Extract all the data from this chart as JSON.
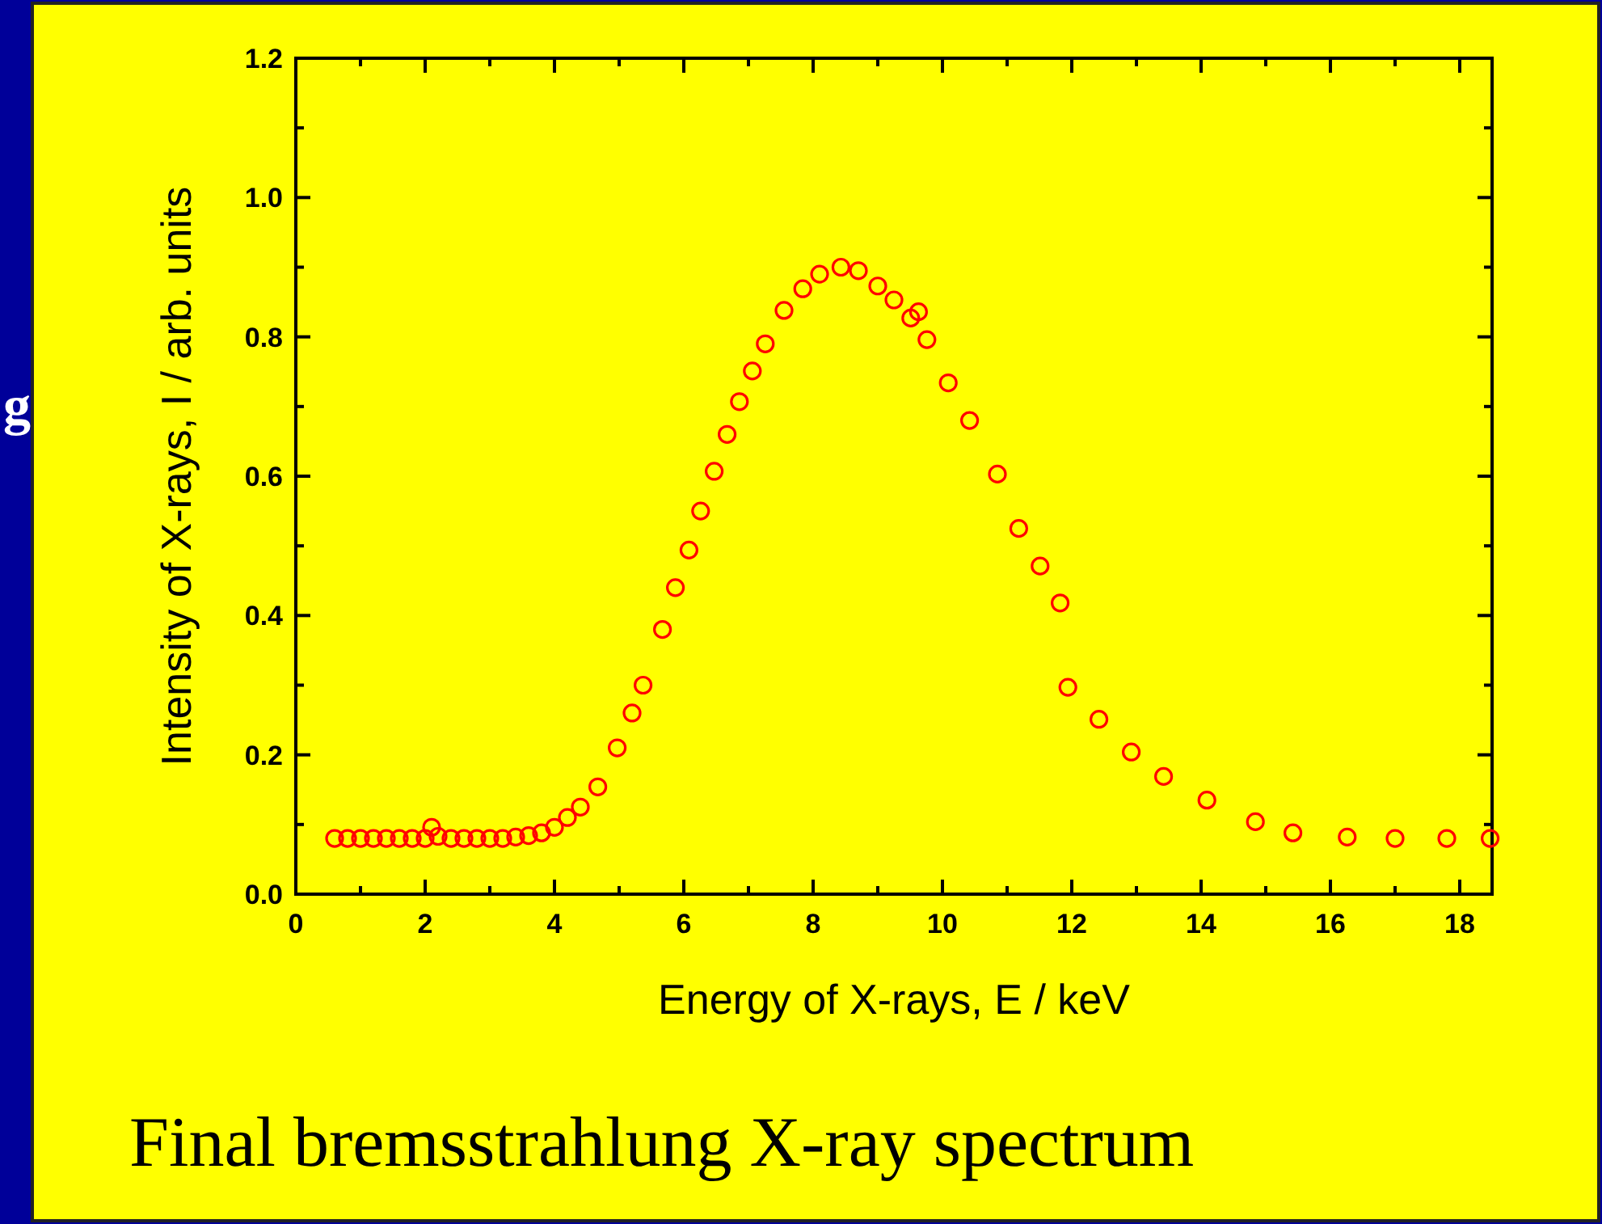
{
  "chart_data": {
    "type": "scatter",
    "title": "Final bremsstrahlung X-ray spectrum",
    "xlabel": "Energy of X-rays, E / keV",
    "ylabel": "Intensity of X-rays, I / arb. units",
    "annotations": [
      "g"
    ],
    "xlim": [
      0,
      18.5
    ],
    "ylim": [
      0,
      1.2
    ],
    "xticks": [
      0,
      {
        "value": 1,
        "label": null
      },
      2,
      {
        "value": 3,
        "label": null
      },
      4,
      {
        "value": 5,
        "label": null
      },
      6,
      {
        "value": 7,
        "label": null
      },
      8,
      {
        "value": 9,
        "label": null
      },
      10,
      {
        "value": 11,
        "label": null
      },
      12,
      {
        "value": 13,
        "label": null
      },
      14,
      {
        "value": 15,
        "label": null
      },
      16,
      {
        "value": 17,
        "label": null
      },
      18
    ],
    "yticks": [
      {
        "value": 0,
        "label": "0.0"
      },
      {
        "value": 0.1,
        "label": null
      },
      {
        "value": 0.2,
        "label": "0.2"
      },
      {
        "value": 0.3,
        "label": null
      },
      {
        "value": 0.4,
        "label": "0.4"
      },
      {
        "value": 0.5,
        "label": null
      },
      {
        "value": 0.6,
        "label": "0.6"
      },
      {
        "value": 0.7,
        "label": null
      },
      {
        "value": 0.8,
        "label": "0.8"
      },
      {
        "value": 0.9,
        "label": null
      },
      {
        "value": 1,
        "label": "1.0"
      },
      {
        "value": 1.1,
        "label": null
      },
      {
        "value": 1.2,
        "label": "1.2"
      }
    ],
    "grid": false,
    "marker": "circle",
    "series": [
      {
        "color": "#ff0000",
        "x": [
          0.6,
          0.8,
          1.0,
          1.2,
          1.4,
          1.6,
          1.8,
          2.0,
          2.1,
          2.2,
          2.4,
          2.6,
          2.8,
          3.0,
          3.2,
          3.4,
          3.6,
          3.8,
          4.0,
          4.2,
          4.4,
          4.67,
          4.97,
          5.2,
          5.37,
          5.67,
          5.87,
          6.08,
          6.26,
          6.47,
          6.67,
          6.86,
          7.06,
          7.26,
          7.55,
          7.84,
          8.1,
          8.43,
          8.7,
          9.0,
          9.25,
          9.51,
          9.63,
          9.76,
          10.09,
          10.42,
          10.85,
          11.18,
          11.51,
          11.82,
          11.94,
          12.42,
          12.92,
          13.42,
          14.09,
          14.84,
          15.42,
          16.26,
          17.0,
          17.8,
          18.47
        ],
        "values": [
          0.08,
          0.08,
          0.08,
          0.08,
          0.08,
          0.08,
          0.08,
          0.08,
          0.096,
          0.083,
          0.08,
          0.08,
          0.08,
          0.08,
          0.08,
          0.082,
          0.084,
          0.088,
          0.096,
          0.11,
          0.125,
          0.154,
          0.21,
          0.26,
          0.3,
          0.38,
          0.44,
          0.494,
          0.55,
          0.607,
          0.66,
          0.707,
          0.751,
          0.79,
          0.838,
          0.869,
          0.89,
          0.9,
          0.895,
          0.873,
          0.853,
          0.827,
          0.836,
          0.796,
          0.734,
          0.68,
          0.603,
          0.525,
          0.471,
          0.418,
          0.297,
          0.251,
          0.204,
          0.169,
          0.135,
          0.104,
          0.088,
          0.082,
          0.08,
          0.08,
          0.08
        ]
      }
    ]
  }
}
